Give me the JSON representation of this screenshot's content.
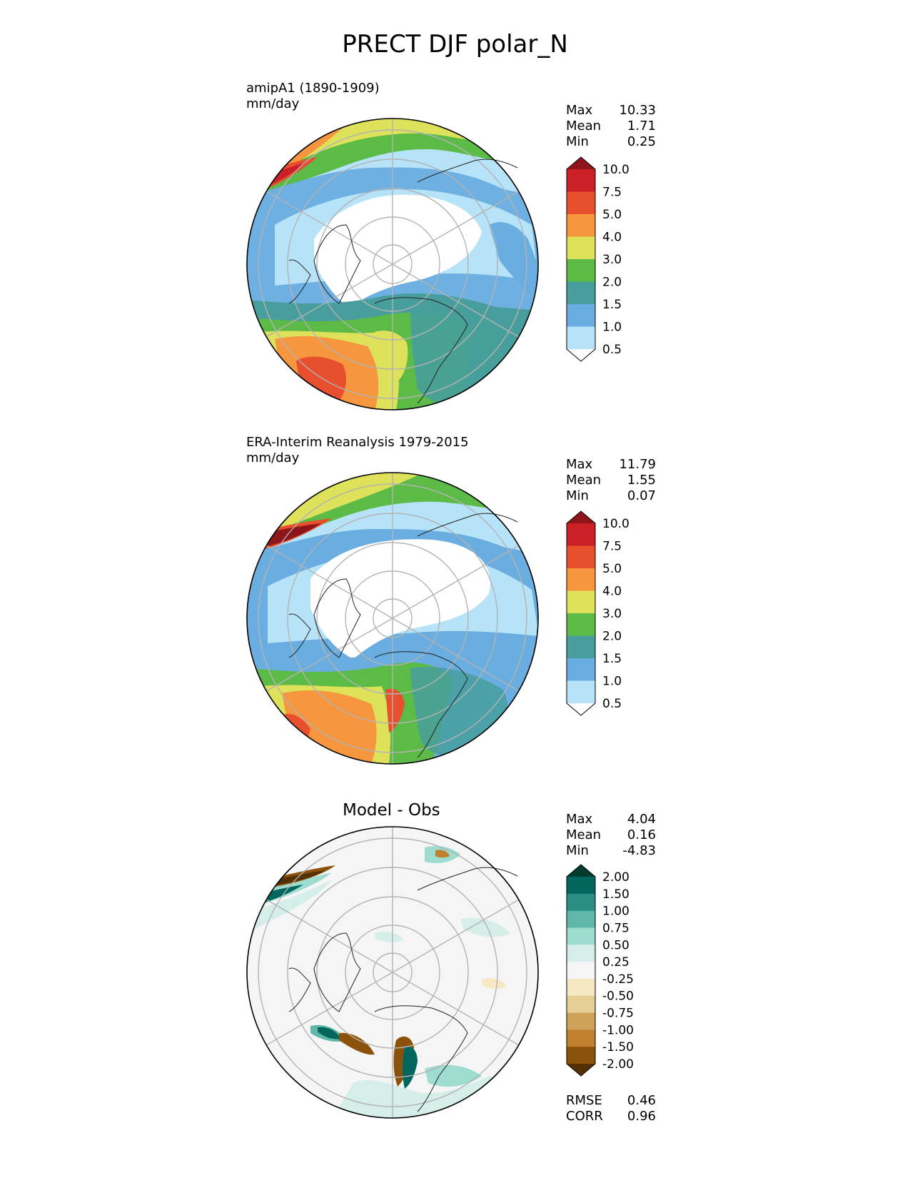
{
  "title": "PRECT DJF polar_N",
  "panels": [
    {
      "label_line1": "amipA1 (1890-1909)",
      "label_line2": "mm/day",
      "stats": [
        {
          "label": "Max",
          "value": "10.33"
        },
        {
          "label": "Mean",
          "value": "1.71"
        },
        {
          "label": "Min",
          "value": "0.25"
        }
      ]
    },
    {
      "label_line1": "ERA-Interim Reanalysis 1979-2015",
      "label_line2": "mm/day",
      "stats": [
        {
          "label": "Max",
          "value": "11.79"
        },
        {
          "label": "Mean",
          "value": "1.55"
        },
        {
          "label": "Min",
          "value": "0.07"
        }
      ]
    },
    {
      "title": "Model - Obs",
      "stats": [
        {
          "label": "Max",
          "value": "4.04"
        },
        {
          "label": "Mean",
          "value": "0.16"
        },
        {
          "label": "Min",
          "value": "-4.83"
        }
      ],
      "metrics": [
        {
          "label": "RMSE",
          "value": "0.46"
        },
        {
          "label": "CORR",
          "value": "0.96"
        }
      ]
    }
  ],
  "precip_colorbar": {
    "ticks": [
      "0.5",
      "1.0",
      "1.5",
      "2.0",
      "3.0",
      "4.0",
      "5.0",
      "7.5",
      "10.0"
    ],
    "colors": [
      "#ffffff",
      "#b6e3f8",
      "#6aade0",
      "#479e9c",
      "#5cbb47",
      "#dde25a",
      "#f6963e",
      "#e84f2e",
      "#cc2028",
      "#8d161b"
    ]
  },
  "diff_colorbar": {
    "ticks": [
      "-2.00",
      "-1.50",
      "-1.00",
      "-0.75",
      "-0.50",
      "-0.25",
      "0.25",
      "0.50",
      "0.75",
      "1.00",
      "1.50",
      "2.00"
    ],
    "colors": [
      "#543005",
      "#8c510a",
      "#bf812d",
      "#cfa25a",
      "#e6cf94",
      "#f6e8c3",
      "#f5f5f5",
      "#d5eee9",
      "#9edcd0",
      "#5fb7aa",
      "#2a8f83",
      "#01665e",
      "#003c30"
    ]
  }
}
